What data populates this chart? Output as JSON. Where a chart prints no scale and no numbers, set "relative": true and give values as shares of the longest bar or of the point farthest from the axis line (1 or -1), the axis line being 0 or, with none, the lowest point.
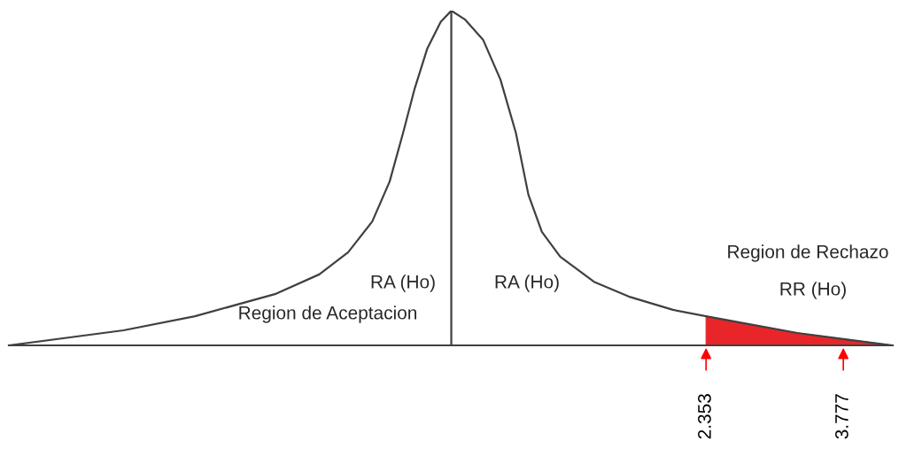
{
  "chart_data": {
    "type": "line",
    "relative": true,
    "x": [
      -4.88,
      -3.69,
      -2.95,
      -2.12,
      -1.66,
      -1.36,
      -1.11,
      -0.93,
      -0.79,
      -0.67,
      -0.54,
      -0.4,
      -0.29,
      -0.15,
      0.04,
      0.22,
      0.38,
      0.51,
      0.65,
      0.84,
      1.19,
      1.55,
      2.01,
      2.353,
      2.84,
      3.3,
      3.777,
      4.29
    ],
    "series": [
      {
        "color": "#404040",
        "values": [
          0,
          0.045,
          0.087,
          0.153,
          0.212,
          0.278,
          0.37,
          0.489,
          0.635,
          0.767,
          0.886,
          0.966,
          1,
          0.974,
          0.913,
          0.794,
          0.635,
          0.45,
          0.339,
          0.265,
          0.19,
          0.146,
          0.106,
          0.087,
          0.061,
          0.037,
          0.019,
          0
        ]
      },
      {
        "type": "area",
        "color": "#e8262a",
        "x": [
          2.353,
          2.84,
          3.3,
          3.777,
          4.29
        ],
        "values": [
          0.087,
          0.061,
          0.037,
          0.019,
          0
        ]
      }
    ],
    "xlim": [
      -4.88,
      4.29
    ],
    "xticks": [
      2.353,
      3.777
    ],
    "tick_labels": "x",
    "grid": false,
    "legend": false,
    "ref_lines": [
      {
        "axis": "x",
        "value": -0.29,
        "color": "#404040"
      }
    ],
    "annotations": [
      "RA (Ho)",
      "RA (Ho)",
      "Region de Aceptacion",
      "Region de Rechazo",
      "RR (Ho)"
    ]
  }
}
